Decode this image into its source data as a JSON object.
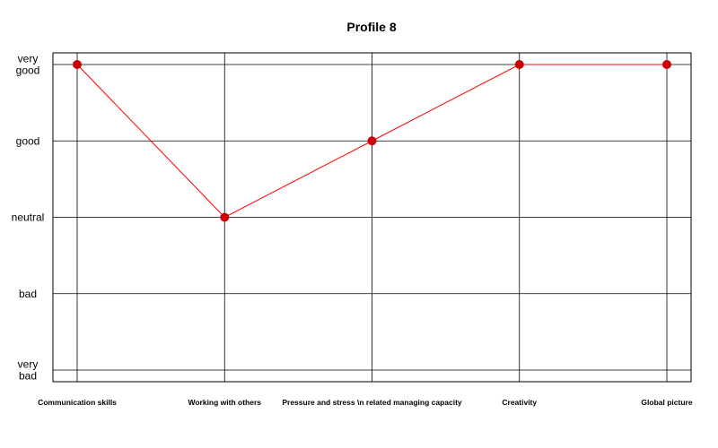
{
  "chart_data": {
    "type": "line",
    "title": "Profile 8",
    "xlabel": "",
    "ylabel": "",
    "categories": [
      "Communication skills",
      "Working with others",
      "Pressure and stress \\n related managing capacity",
      "Creativity",
      "Global picture"
    ],
    "y_levels": [
      [
        "very",
        "bad"
      ],
      [
        "bad"
      ],
      [
        "neutral"
      ],
      [
        "good"
      ],
      [
        "very",
        "good"
      ]
    ],
    "ylim": [
      1,
      5
    ],
    "grid": true,
    "series": [
      {
        "values": [
          5,
          3,
          4,
          5,
          5
        ],
        "color": "#ff0000",
        "marker_color": "#cc0000"
      }
    ]
  }
}
